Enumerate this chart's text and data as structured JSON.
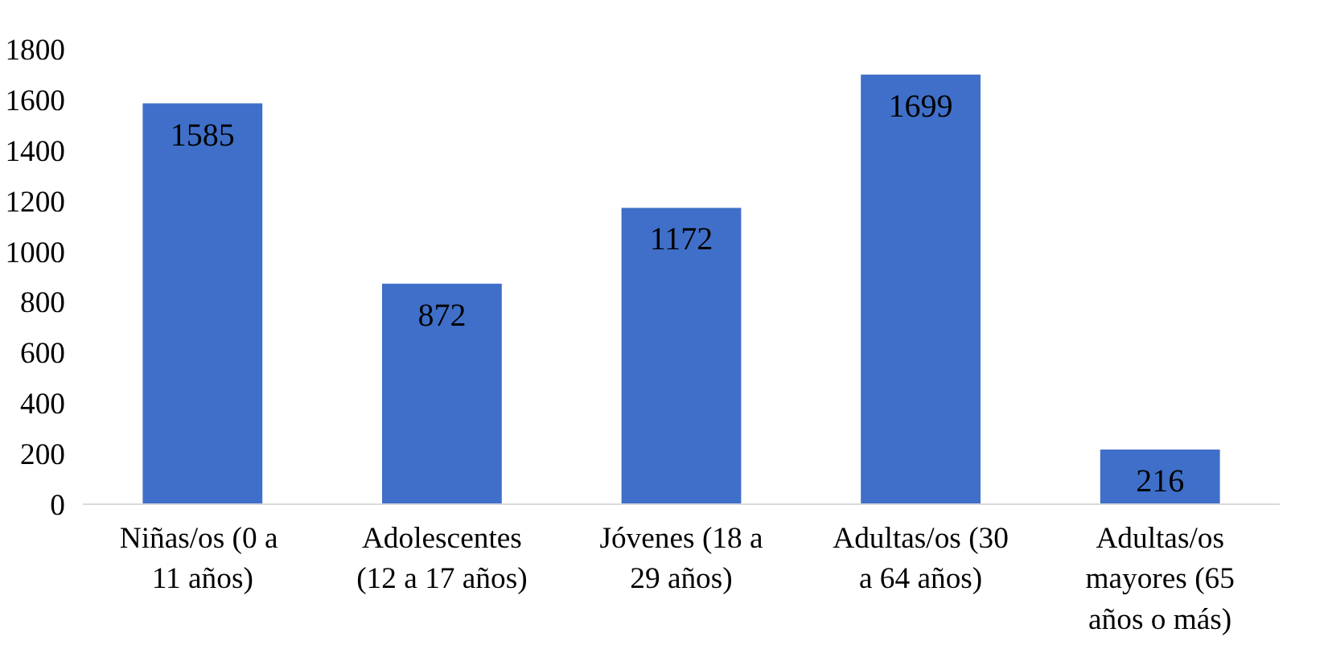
{
  "chart_data": {
    "type": "bar",
    "categories": [
      "Niñas/os  (0 a\n11 años)",
      "Adolescentes\n(12 a 17 años)",
      "Jóvenes (18 a\n29 años)",
      "Adultas/os (30\na 64 años)",
      "Adultas/os\nmayores (65\naños o más)"
    ],
    "values": [
      1585,
      872,
      1172,
      1699,
      216
    ],
    "color": "#3f6fc8",
    "ylim": [
      0,
      1800
    ],
    "yticks": [
      0,
      200,
      400,
      600,
      800,
      1000,
      1200,
      1400,
      1600,
      1800
    ],
    "grid": false,
    "data_labels": true
  }
}
